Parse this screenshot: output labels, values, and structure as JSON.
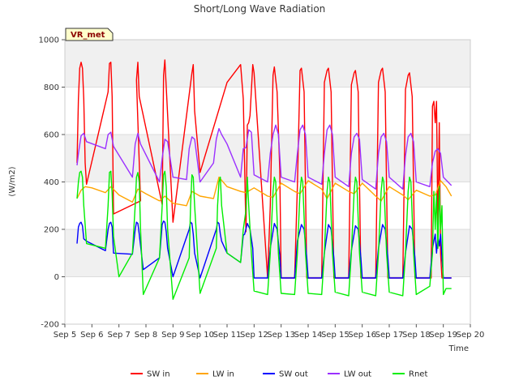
{
  "chart_data": {
    "type": "line",
    "title": "Short/Long Wave Radiation",
    "xlabel": "Time",
    "ylabel": "(W/m2)",
    "site_tag": "VR_met",
    "xlim": [
      5,
      20
    ],
    "ylim": [
      -200,
      1000
    ],
    "x_ticks": [
      5,
      6,
      7,
      8,
      9,
      10,
      11,
      12,
      13,
      14,
      15,
      16,
      17,
      18,
      19,
      20
    ],
    "x_tick_labels": [
      "Sep 5",
      "Sep 6",
      "Sep 7",
      "Sep 8",
      "Sep 9",
      "Sep 10",
      "Sep 11",
      "Sep 12",
      "Sep 13",
      "Sep 14",
      "Sep 15",
      "Sep 16",
      "Sep 17",
      "Sep 18",
      "Sep 19",
      "Sep 20"
    ],
    "y_ticks": [
      -200,
      0,
      200,
      400,
      600,
      800,
      1000
    ],
    "y_tick_labels": [
      "-200",
      "0",
      "200",
      "400",
      "600",
      "800",
      "1000"
    ],
    "background_bands": true,
    "legend_position": "bottom",
    "series": [
      {
        "name": "SW in",
        "color": "#ff0000",
        "x": [
          5.45,
          5.5,
          5.55,
          5.6,
          5.65,
          5.7,
          5.75,
          5.8,
          6.6,
          6.65,
          6.7,
          6.75,
          6.8,
          7.8,
          7.65,
          7.7,
          7.75,
          8.6,
          8.65,
          8.7,
          8.75,
          9.0,
          9.7,
          9.75,
          9.8,
          10.0,
          11.0,
          11.5,
          11.6,
          11.7,
          11.75,
          11.8,
          11.85,
          11.95,
          12.0,
          12.5,
          12.6,
          12.7,
          12.75,
          12.85,
          12.95,
          13.0,
          13.5,
          13.6,
          13.7,
          13.75,
          13.85,
          13.95,
          14.0,
          14.5,
          14.6,
          14.7,
          14.75,
          14.85,
          14.95,
          15.0,
          15.5,
          15.6,
          15.7,
          15.75,
          15.85,
          15.95,
          16.0,
          16.5,
          16.6,
          16.7,
          16.75,
          16.85,
          16.95,
          17.0,
          17.5,
          17.6,
          17.7,
          17.75,
          17.85,
          17.95,
          18.0,
          18.55,
          18.6,
          18.65,
          18.7,
          18.75,
          18.8,
          18.85,
          18.9,
          18.95,
          19.0,
          19.05,
          19.3
        ],
        "values": [
          480,
          750,
          880,
          905,
          880,
          750,
          480,
          390,
          780,
          900,
          905,
          760,
          265,
          320,
          830,
          905,
          760,
          305,
          850,
          915,
          800,
          230,
          860,
          895,
          700,
          440,
          820,
          895,
          750,
          190,
          640,
          650,
          680,
          895,
          860,
          -5,
          300,
          850,
          885,
          780,
          450,
          -5,
          -5,
          380,
          870,
          880,
          780,
          -5,
          -5,
          -5,
          820,
          870,
          880,
          780,
          -5,
          -5,
          -5,
          810,
          860,
          870,
          780,
          -5,
          -5,
          -5,
          820,
          870,
          880,
          780,
          -5,
          -5,
          -5,
          790,
          850,
          860,
          760,
          -5,
          -5,
          -5,
          720,
          740,
          650,
          740,
          200,
          650,
          100,
          -5,
          -5,
          -5,
          -5
        ]
      },
      {
        "name": "LW in",
        "color": "#ffa500",
        "x": [
          5.45,
          5.6,
          5.75,
          6.0,
          6.5,
          6.7,
          7.0,
          7.5,
          7.7,
          8.0,
          8.5,
          8.7,
          9.0,
          9.5,
          9.7,
          10.0,
          10.5,
          10.7,
          11.0,
          11.5,
          11.7,
          12.0,
          12.5,
          12.7,
          13.0,
          13.5,
          13.7,
          14.0,
          14.5,
          14.7,
          15.0,
          15.5,
          15.7,
          16.0,
          16.5,
          16.7,
          17.0,
          17.5,
          17.7,
          18.0,
          18.5,
          18.7,
          18.9,
          19.1,
          19.3
        ],
        "values": [
          330,
          365,
          380,
          375,
          355,
          380,
          345,
          315,
          370,
          350,
          320,
          340,
          310,
          300,
          360,
          340,
          330,
          420,
          380,
          360,
          355,
          375,
          340,
          335,
          395,
          360,
          350,
          405,
          370,
          330,
          395,
          360,
          350,
          395,
          340,
          320,
          380,
          345,
          325,
          365,
          340,
          345,
          405,
          380,
          340
        ]
      },
      {
        "name": "SW out",
        "color": "#0000ff",
        "x": [
          5.45,
          5.5,
          5.55,
          5.6,
          5.65,
          5.7,
          5.8,
          6.5,
          6.6,
          6.65,
          6.7,
          6.75,
          6.8,
          7.5,
          7.6,
          7.65,
          7.7,
          7.75,
          7.9,
          8.5,
          8.6,
          8.65,
          8.7,
          8.75,
          8.8,
          9.0,
          9.6,
          9.65,
          9.7,
          9.75,
          9.8,
          10.0,
          10.6,
          10.65,
          10.7,
          10.75,
          10.8,
          11.0,
          11.5,
          11.6,
          11.65,
          11.75,
          11.85,
          11.95,
          12.0,
          12.5,
          12.6,
          12.75,
          12.85,
          12.95,
          13.0,
          13.5,
          13.6,
          13.75,
          13.85,
          13.95,
          14.0,
          14.5,
          14.6,
          14.75,
          14.85,
          14.95,
          15.0,
          15.5,
          15.6,
          15.75,
          15.85,
          15.95,
          16.0,
          16.5,
          16.6,
          16.75,
          16.85,
          16.95,
          17.0,
          17.5,
          17.6,
          17.75,
          17.85,
          17.95,
          18.0,
          18.5,
          18.6,
          18.7,
          18.75,
          18.8,
          18.85,
          18.9,
          18.95,
          19.0,
          19.3
        ],
        "values": [
          140,
          210,
          225,
          230,
          215,
          160,
          150,
          110,
          200,
          225,
          230,
          210,
          100,
          95,
          200,
          230,
          225,
          180,
          30,
          80,
          220,
          235,
          230,
          190,
          120,
          0,
          200,
          230,
          225,
          180,
          100,
          -5,
          200,
          230,
          225,
          180,
          150,
          100,
          60,
          175,
          180,
          225,
          200,
          120,
          -5,
          -5,
          120,
          225,
          200,
          90,
          -5,
          -5,
          150,
          220,
          200,
          80,
          -5,
          -5,
          100,
          220,
          200,
          80,
          -5,
          -5,
          110,
          215,
          200,
          80,
          -5,
          -5,
          120,
          220,
          200,
          80,
          -5,
          -5,
          100,
          215,
          200,
          80,
          -5,
          -5,
          120,
          180,
          100,
          170,
          130,
          180,
          80,
          -5,
          -5
        ]
      },
      {
        "name": "LW out",
        "color": "#9b30ff",
        "x": [
          5.45,
          5.5,
          5.6,
          5.7,
          5.8,
          6.5,
          6.6,
          6.7,
          6.8,
          7.5,
          7.6,
          7.7,
          7.8,
          8.5,
          8.6,
          8.7,
          8.8,
          9.0,
          9.5,
          9.6,
          9.7,
          9.8,
          10.0,
          10.5,
          10.6,
          10.7,
          10.8,
          11.0,
          11.5,
          11.6,
          11.7,
          11.8,
          11.9,
          12.0,
          12.5,
          12.6,
          12.7,
          12.8,
          12.9,
          13.0,
          13.5,
          13.6,
          13.7,
          13.8,
          13.9,
          14.0,
          14.5,
          14.6,
          14.7,
          14.8,
          14.9,
          15.0,
          15.5,
          15.6,
          15.7,
          15.8,
          15.9,
          16.0,
          16.5,
          16.6,
          16.7,
          16.8,
          16.9,
          17.0,
          17.5,
          17.6,
          17.7,
          17.8,
          17.9,
          18.0,
          18.5,
          18.6,
          18.7,
          18.8,
          18.9,
          19.0,
          19.3
        ],
        "values": [
          470,
          520,
          595,
          605,
          570,
          540,
          600,
          610,
          550,
          420,
          560,
          605,
          560,
          400,
          500,
          580,
          570,
          420,
          410,
          540,
          590,
          580,
          400,
          480,
          580,
          625,
          600,
          560,
          420,
          540,
          545,
          620,
          610,
          430,
          400,
          520,
          600,
          640,
          600,
          420,
          400,
          520,
          620,
          640,
          600,
          420,
          390,
          520,
          620,
          640,
          600,
          420,
          380,
          520,
          590,
          605,
          580,
          410,
          370,
          520,
          590,
          605,
          570,
          420,
          370,
          510,
          590,
          605,
          570,
          400,
          380,
          480,
          530,
          540,
          520,
          420,
          385
        ]
      },
      {
        "name": "Rnet",
        "color": "#00ee00",
        "x": [
          5.45,
          5.5,
          5.55,
          5.6,
          5.65,
          5.7,
          5.8,
          6.5,
          6.6,
          6.65,
          6.7,
          6.75,
          6.8,
          7.0,
          7.5,
          7.6,
          7.65,
          7.7,
          7.75,
          7.8,
          7.9,
          8.5,
          8.6,
          8.65,
          8.7,
          8.75,
          8.8,
          9.0,
          9.6,
          9.65,
          9.7,
          9.75,
          9.8,
          10.0,
          10.6,
          10.65,
          10.7,
          10.75,
          10.8,
          11.0,
          11.5,
          11.6,
          11.7,
          11.75,
          11.8,
          11.9,
          12.0,
          12.5,
          12.6,
          12.7,
          12.75,
          12.8,
          12.9,
          13.0,
          13.5,
          13.6,
          13.7,
          13.75,
          13.8,
          13.9,
          14.0,
          14.5,
          14.6,
          14.7,
          14.75,
          14.8,
          14.9,
          15.0,
          15.5,
          15.6,
          15.7,
          15.75,
          15.8,
          15.9,
          16.0,
          16.5,
          16.6,
          16.7,
          16.75,
          16.8,
          16.9,
          17.0,
          17.5,
          17.6,
          17.7,
          17.75,
          17.8,
          17.9,
          18.0,
          18.5,
          18.6,
          18.65,
          18.7,
          18.75,
          18.8,
          18.85,
          18.9,
          18.95,
          19.0,
          19.1,
          19.3
        ],
        "values": [
          330,
          400,
          440,
          445,
          420,
          300,
          140,
          120,
          300,
          440,
          445,
          350,
          170,
          0,
          100,
          300,
          420,
          440,
          400,
          200,
          -75,
          80,
          300,
          430,
          445,
          380,
          200,
          -95,
          80,
          300,
          430,
          420,
          300,
          -70,
          120,
          300,
          400,
          420,
          300,
          100,
          60,
          200,
          280,
          420,
          300,
          100,
          -60,
          -75,
          100,
          360,
          420,
          400,
          100,
          -70,
          -75,
          100,
          360,
          420,
          400,
          100,
          -70,
          -75,
          100,
          360,
          420,
          400,
          100,
          -65,
          -80,
          100,
          360,
          420,
          400,
          100,
          -65,
          -80,
          100,
          360,
          420,
          400,
          100,
          -65,
          -80,
          100,
          360,
          420,
          400,
          100,
          -75,
          -40,
          100,
          360,
          200,
          350,
          120,
          380,
          200,
          300,
          -75,
          -50,
          -50
        ]
      }
    ]
  }
}
